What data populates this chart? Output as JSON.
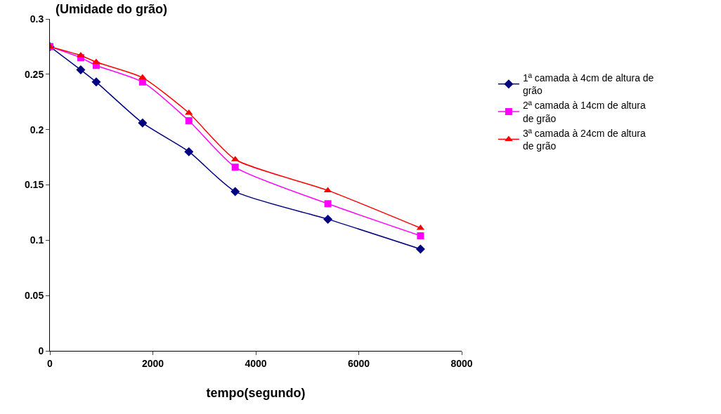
{
  "chart_data": {
    "type": "line",
    "ylabel": "(Umidade do grão)",
    "xlabel": "tempo(segundo)",
    "x": [
      0,
      600,
      900,
      1800,
      2700,
      3600,
      5400,
      7200
    ],
    "series": [
      {
        "name": "1ª camada à 4cm de altura de grão",
        "color": "#000080",
        "marker": "diamond",
        "values": [
          0.275,
          0.254,
          0.243,
          0.206,
          0.18,
          0.144,
          0.119,
          0.092
        ]
      },
      {
        "name": "2ª camada à 14cm de altura de grão",
        "color": "#ff00ff",
        "marker": "square",
        "values": [
          0.275,
          0.265,
          0.258,
          0.243,
          0.208,
          0.166,
          0.133,
          0.104
        ]
      },
      {
        "name": "3ª camada à 24cm de altura de grão",
        "color": "#ff0000",
        "marker": "triangle",
        "values": [
          0.275,
          0.267,
          0.261,
          0.247,
          0.215,
          0.173,
          0.145,
          0.111
        ]
      }
    ],
    "xlim": [
      0,
      8000
    ],
    "xticks": [
      0,
      2000,
      4000,
      6000,
      8000
    ],
    "ylim": [
      0,
      0.3
    ],
    "yticks": [
      0,
      0.05,
      0.1,
      0.15,
      0.2,
      0.25,
      0.3
    ],
    "grid": false,
    "legend": "right"
  }
}
